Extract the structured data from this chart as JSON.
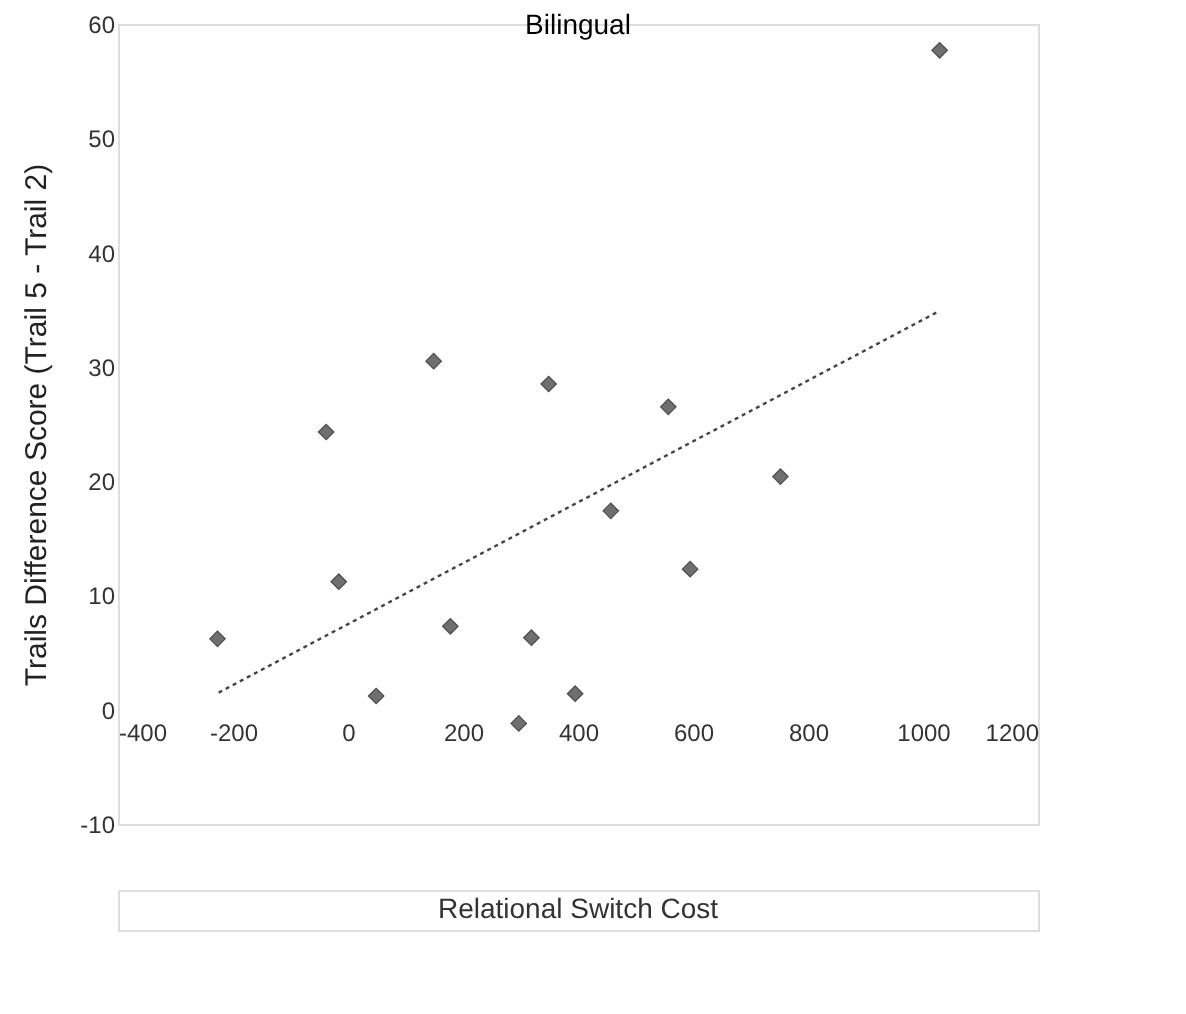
{
  "chart_data": {
    "type": "scatter",
    "title": "Bilingual",
    "xlabel": "Relational Switch Cost",
    "ylabel": "Trails Difference Score (Trail 5 - Trail 2)",
    "xlim": [
      -400,
      1200
    ],
    "ylim": [
      -10,
      60
    ],
    "xticks": [
      -400,
      -200,
      0,
      200,
      400,
      600,
      800,
      1000,
      1200
    ],
    "yticks": [
      -10,
      0,
      10,
      20,
      30,
      40,
      50,
      60
    ],
    "grid": false,
    "series": [
      {
        "color": "#333333",
        "marker": "diamond",
        "x": [
          -227,
          -38,
          -16,
          49,
          149,
          178,
          297,
          319,
          349,
          395,
          457,
          557,
          595,
          752,
          1029
        ],
        "values": [
          6.2,
          24.3,
          11.2,
          1.2,
          30.5,
          7.3,
          -1.2,
          6.3,
          28.5,
          1.4,
          17.4,
          26.5,
          12.3,
          20.4,
          57.7
        ]
      },
      {
        "type": "line",
        "color": "#444444",
        "line_style": "dotted",
        "x": [
          -225,
          1029
        ],
        "values": [
          1.5,
          34.9
        ]
      }
    ]
  }
}
